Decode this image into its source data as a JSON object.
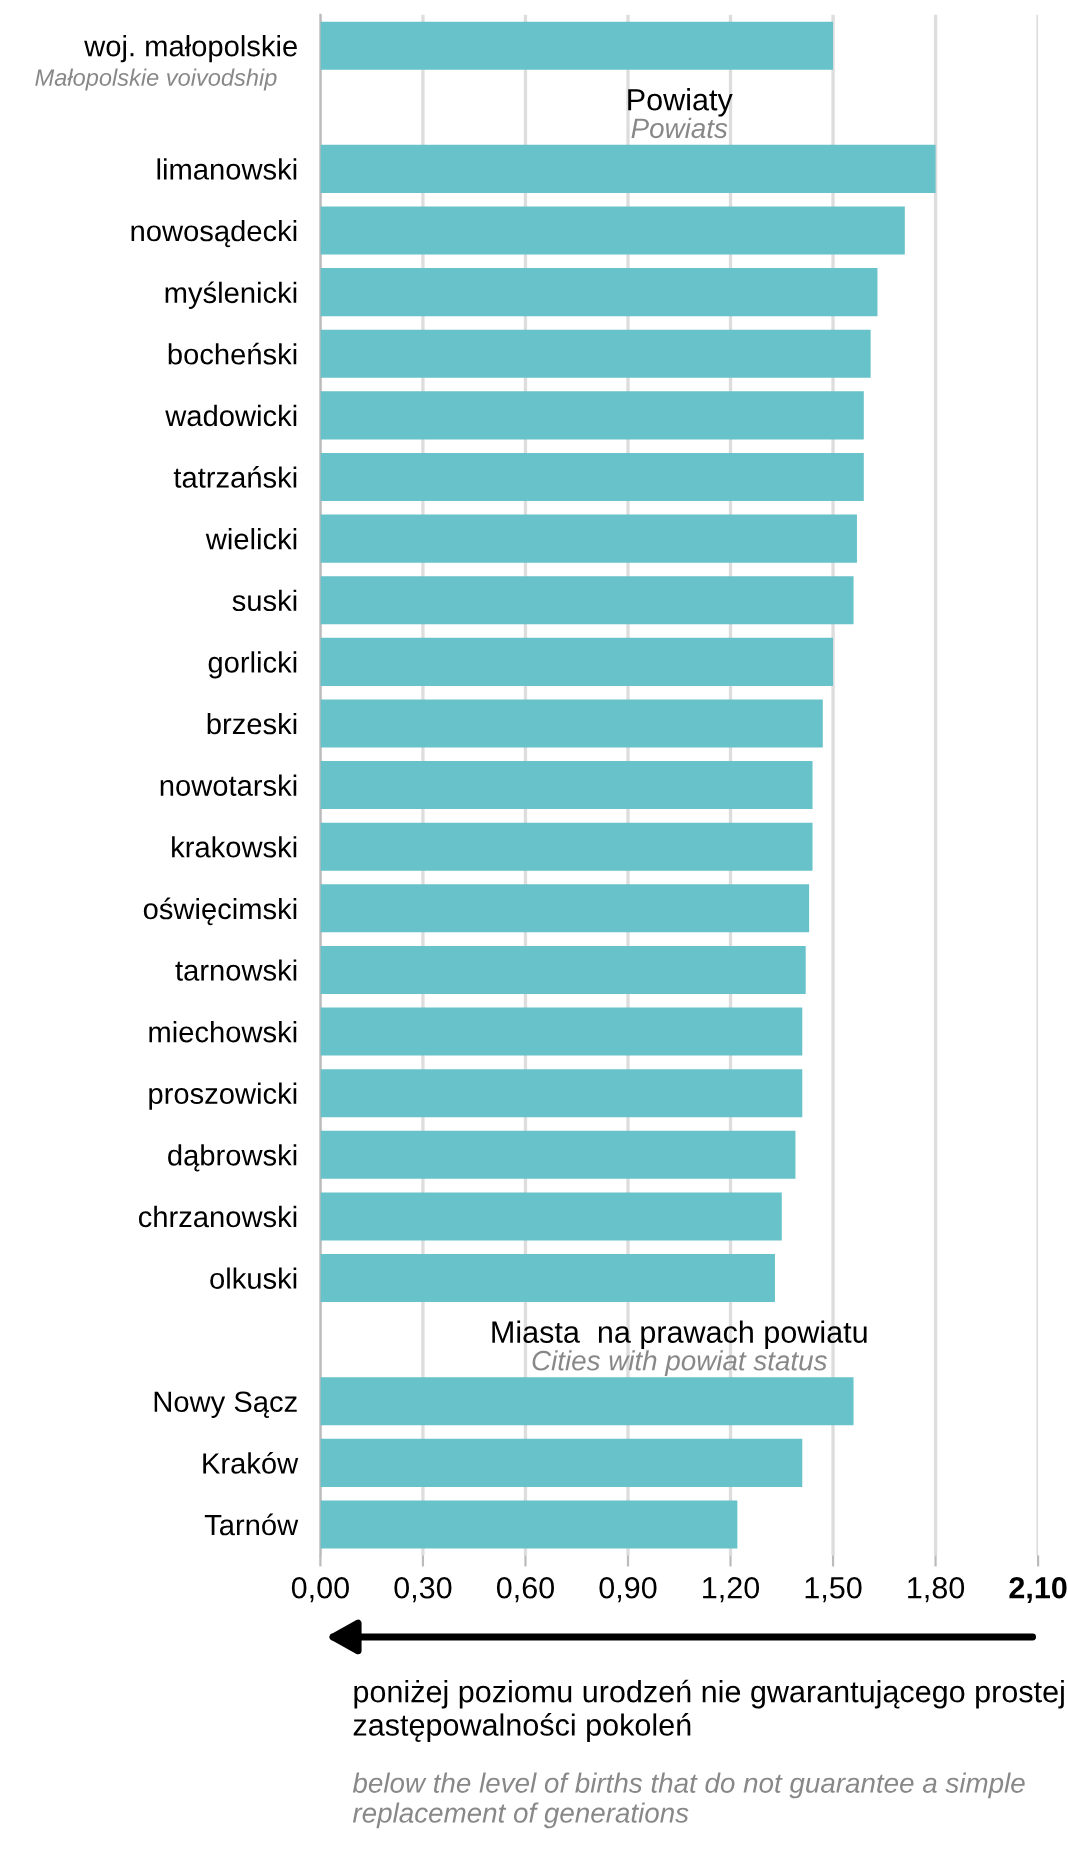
{
  "chart_data": {
    "type": "bar",
    "orientation": "horizontal",
    "categories": [
      "woj. małopolskie",
      null,
      "limanowski",
      "nowosądecki",
      "myślenicki",
      "bocheński",
      "wadowicki",
      "tatrzański",
      "wielicki",
      "suski",
      "gorlicki",
      "brzeski",
      "nowotarski",
      "krakowski",
      "oświęcimski",
      "tarnowski",
      "miechowski",
      "proszowicki",
      "dąbrowski",
      "chrzanowski",
      "olkuski",
      null,
      "Nowy Sącz",
      "Kraków",
      "Tarnów"
    ],
    "values": [
      1.5,
      null,
      1.8,
      1.71,
      1.63,
      1.61,
      1.59,
      1.59,
      1.57,
      1.56,
      1.5,
      1.47,
      1.44,
      1.44,
      1.43,
      1.42,
      1.41,
      1.41,
      1.39,
      1.35,
      1.33,
      null,
      1.56,
      1.41,
      1.22
    ],
    "color": "#67c2ca",
    "xlim": [
      0,
      2.1
    ],
    "xticks": [
      {
        "value": 0,
        "label": "0,00"
      },
      {
        "value": 0.3,
        "label": "0,30"
      },
      {
        "value": 0.6,
        "label": "0,60"
      },
      {
        "value": 0.9,
        "label": "0,90"
      },
      {
        "value": 1.2,
        "label": "1,20"
      },
      {
        "value": 1.5,
        "label": "1,50"
      },
      {
        "value": 1.8,
        "label": "1,80"
      },
      {
        "value": 2.1,
        "label": "2,10"
      }
    ],
    "grid": "x",
    "annotations": [
      "Małopolskie voivodship",
      "Powiaty",
      "Powiats",
      "Miasta  na prawach powiatu",
      "Cities with powiat status",
      "poniżej poziomu urodzeń nie gwarantującego prostej zastępowalności pokoleń",
      "below the level of births that do not guarantee a simple replacement of generations"
    ]
  }
}
